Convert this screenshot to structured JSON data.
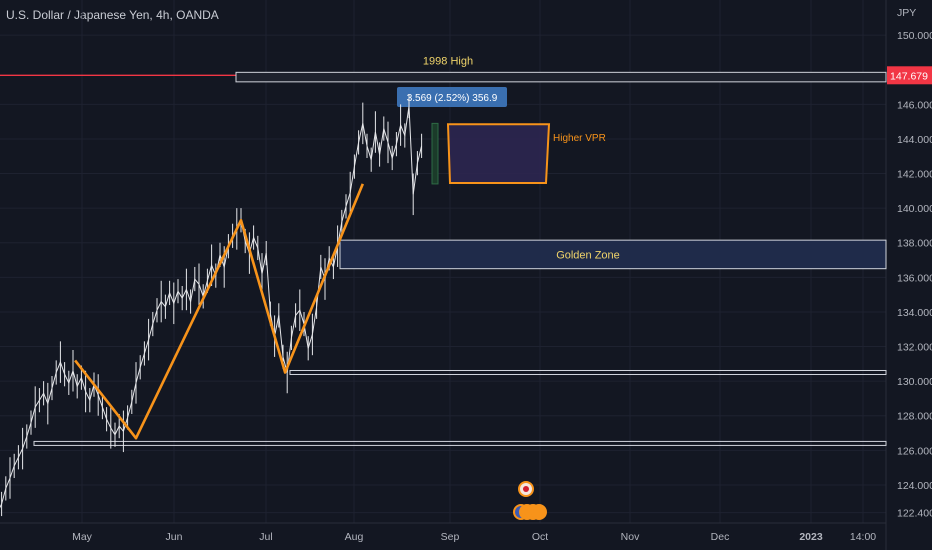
{
  "header": {
    "title": "U.S. Dollar / Japanese Yen, 4h, OANDA"
  },
  "chart_data": {
    "type": "line",
    "price_axis": {
      "unit": "JPY",
      "ylim": [
        121.8,
        152.0
      ],
      "ticks": [
        "150.000",
        "146.000",
        "144.000",
        "142.000",
        "140.000",
        "138.000",
        "136.000",
        "134.000",
        "132.000",
        "130.000",
        "128.000",
        "126.000",
        "124.000",
        "122.400"
      ],
      "current_price_label": "147.679",
      "current_price": 147.679
    },
    "time_axis": {
      "labels": [
        "May",
        "Jun",
        "Jul",
        "Aug",
        "Sep",
        "Oct",
        "Nov",
        "Dec",
        "2023",
        "14:00"
      ]
    },
    "series": [
      {
        "values": [
          [
            -6,
            122.4
          ],
          [
            -4,
            122.9
          ],
          [
            -2,
            123.8
          ],
          [
            0,
            124.4
          ],
          [
            2,
            125.1
          ],
          [
            4,
            125.6
          ],
          [
            6,
            126.1
          ],
          [
            8,
            126.8
          ],
          [
            10,
            127.6
          ],
          [
            12,
            128.5
          ],
          [
            14,
            128.9
          ],
          [
            16,
            129.3
          ],
          [
            18,
            128.7
          ],
          [
            20,
            129.6
          ],
          [
            22,
            130.5
          ],
          [
            24,
            131.1
          ],
          [
            26,
            130.4
          ],
          [
            28,
            129.9
          ],
          [
            30,
            130.6
          ],
          [
            32,
            129.7
          ],
          [
            34,
            130.2
          ],
          [
            36,
            129.4
          ],
          [
            38,
            128.9
          ],
          [
            40,
            129.8
          ],
          [
            42,
            129.2
          ],
          [
            44,
            128.5
          ],
          [
            46,
            127.8
          ],
          [
            48,
            127.3
          ],
          [
            50,
            126.9
          ],
          [
            52,
            127.4
          ],
          [
            54,
            127.1
          ],
          [
            56,
            127.9
          ],
          [
            58,
            128.8
          ],
          [
            60,
            129.9
          ],
          [
            62,
            130.8
          ],
          [
            64,
            131.6
          ],
          [
            66,
            132.4
          ],
          [
            68,
            133.3
          ],
          [
            70,
            134.1
          ],
          [
            72,
            134.6
          ],
          [
            74,
            134.3
          ],
          [
            76,
            135.1
          ],
          [
            78,
            134.5
          ],
          [
            80,
            135.2
          ],
          [
            82,
            134.8
          ],
          [
            84,
            135.3
          ],
          [
            86,
            134.6
          ],
          [
            88,
            135.9
          ],
          [
            90,
            135.6
          ],
          [
            92,
            134.9
          ],
          [
            94,
            135.8
          ],
          [
            96,
            136.7
          ],
          [
            98,
            136.1
          ],
          [
            100,
            137.3
          ],
          [
            102,
            136.6
          ],
          [
            104,
            137.8
          ],
          [
            106,
            138.4
          ],
          [
            108,
            138.8
          ],
          [
            110,
            139.3
          ],
          [
            112,
            138.1
          ],
          [
            114,
            137.4
          ],
          [
            116,
            138.3
          ],
          [
            118,
            137.7
          ],
          [
            120,
            136.2
          ],
          [
            122,
            137.4
          ],
          [
            124,
            133.9
          ],
          [
            126,
            132.6
          ],
          [
            128,
            133.8
          ],
          [
            130,
            131.4
          ],
          [
            132,
            130.5
          ],
          [
            134,
            132.5
          ],
          [
            136,
            133.8
          ],
          [
            138,
            134.1
          ],
          [
            140,
            133.3
          ],
          [
            142,
            131.9
          ],
          [
            144,
            132.7
          ],
          [
            146,
            134.3
          ],
          [
            148,
            136.6
          ],
          [
            150,
            135.9
          ],
          [
            152,
            137.1
          ],
          [
            154,
            136.6
          ],
          [
            156,
            137.8
          ],
          [
            158,
            139.2
          ],
          [
            160,
            140.1
          ],
          [
            162,
            140.9
          ],
          [
            164,
            142.4
          ],
          [
            166,
            143.8
          ],
          [
            168,
            144.9
          ],
          [
            170,
            143.6
          ],
          [
            172,
            142.8
          ],
          [
            174,
            144.4
          ],
          [
            176,
            143.1
          ],
          [
            178,
            144.6
          ],
          [
            180,
            143.8
          ],
          [
            182,
            142.9
          ],
          [
            184,
            143.7
          ],
          [
            186,
            144.8
          ],
          [
            188,
            144.2
          ],
          [
            190,
            145.9
          ],
          [
            192,
            140.8
          ],
          [
            194,
            142.6
          ],
          [
            196,
            143.6
          ]
        ]
      }
    ],
    "zigzag": [
      [
        31,
        131.2
      ],
      [
        60,
        126.7
      ],
      [
        110,
        139.3
      ],
      [
        131,
        130.5
      ],
      [
        168,
        141.4
      ]
    ],
    "levels": [
      {
        "price": 147.679,
        "color": "#f23645"
      },
      {
        "price": 126.4,
        "color": "#d1d4dc"
      },
      {
        "price": 130.5,
        "color": "#d1d4dc"
      }
    ],
    "zones": [
      {
        "label": "1998 High",
        "from": 147.3,
        "to": 147.85,
        "fill": "#1e222d",
        "border": "#d1d4dc",
        "text_color": "#f0d46a"
      },
      {
        "label": "Golden Zone",
        "from": 136.5,
        "to": 138.15,
        "fill": "#1f2b4a",
        "border": "#d1d4dc",
        "text_color": "#f0d46a"
      }
    ],
    "vpr": {
      "label": "Higher VPR",
      "top": 144.85,
      "bottom": 141.45,
      "fill": "#2c2650",
      "border": "#f7931a"
    },
    "measure": {
      "label": "3.569 (2.52%) 356.9",
      "top": 144.9,
      "bottom": 141.4,
      "color": "#3a6fb0"
    },
    "zigzag_color": "#f7931a",
    "series_color": "#e6e7ea",
    "accent": "#f7931a"
  }
}
